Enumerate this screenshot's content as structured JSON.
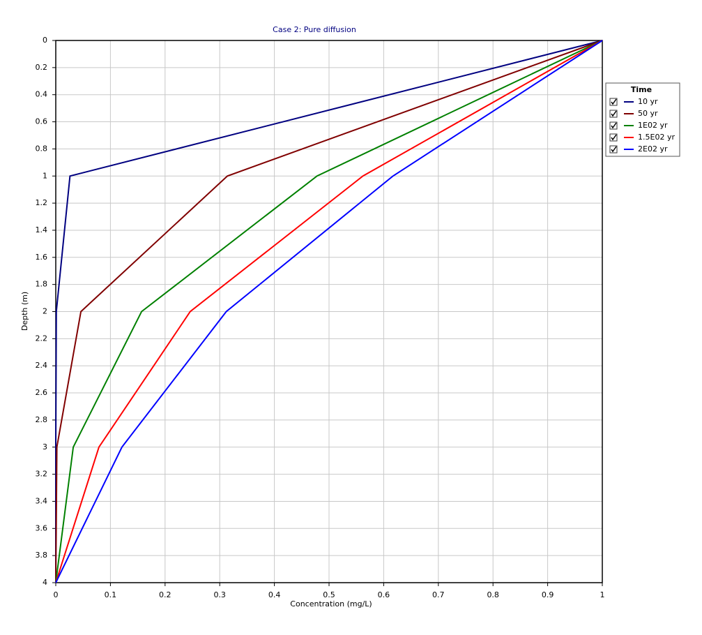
{
  "chart_data": {
    "type": "line",
    "title": "Case 2: Pure diffusion",
    "x_label": "Concentration (mg/L)",
    "y_label": "Depth (m)",
    "xlim": [
      0,
      1
    ],
    "xticks": [
      0,
      0.1,
      0.2,
      0.3,
      0.4,
      0.5,
      0.6,
      0.7,
      0.8,
      0.9,
      1
    ],
    "ylim": [
      0,
      4
    ],
    "yticks": [
      0,
      0.2,
      0.4,
      0.6,
      0.8,
      1,
      1.2,
      1.4,
      1.6,
      1.8,
      2,
      2.2,
      2.4,
      2.6,
      2.8,
      3,
      3.2,
      3.4,
      3.6,
      3.8,
      4
    ],
    "y_inverted": true,
    "grid": true,
    "legend_title": "Time",
    "legend_position": "right",
    "series": [
      {
        "name": "10 yr",
        "color": "#000080",
        "x": [
          1,
          0.026,
          0.001,
          0,
          0
        ],
        "values": [
          0,
          1,
          2,
          3,
          4
        ]
      },
      {
        "name": "50 yr",
        "color": "#800000",
        "x": [
          1,
          0.314,
          0.046,
          0.002,
          0
        ],
        "values": [
          0,
          1,
          2,
          3,
          4
        ]
      },
      {
        "name": "1E02 yr",
        "color": "#008000",
        "x": [
          1,
          0.478,
          0.157,
          0.032,
          0
        ],
        "values": [
          0,
          1,
          2,
          3,
          4
        ]
      },
      {
        "name": "1.5E02 yr",
        "color": "#ff0000",
        "x": [
          1,
          0.562,
          0.246,
          0.079,
          0
        ],
        "values": [
          0,
          1,
          2,
          3,
          4
        ]
      },
      {
        "name": "2E02 yr",
        "color": "#0000ff",
        "x": [
          1,
          0.617,
          0.312,
          0.121,
          0
        ],
        "values": [
          0,
          1,
          2,
          3,
          4
        ]
      }
    ]
  }
}
